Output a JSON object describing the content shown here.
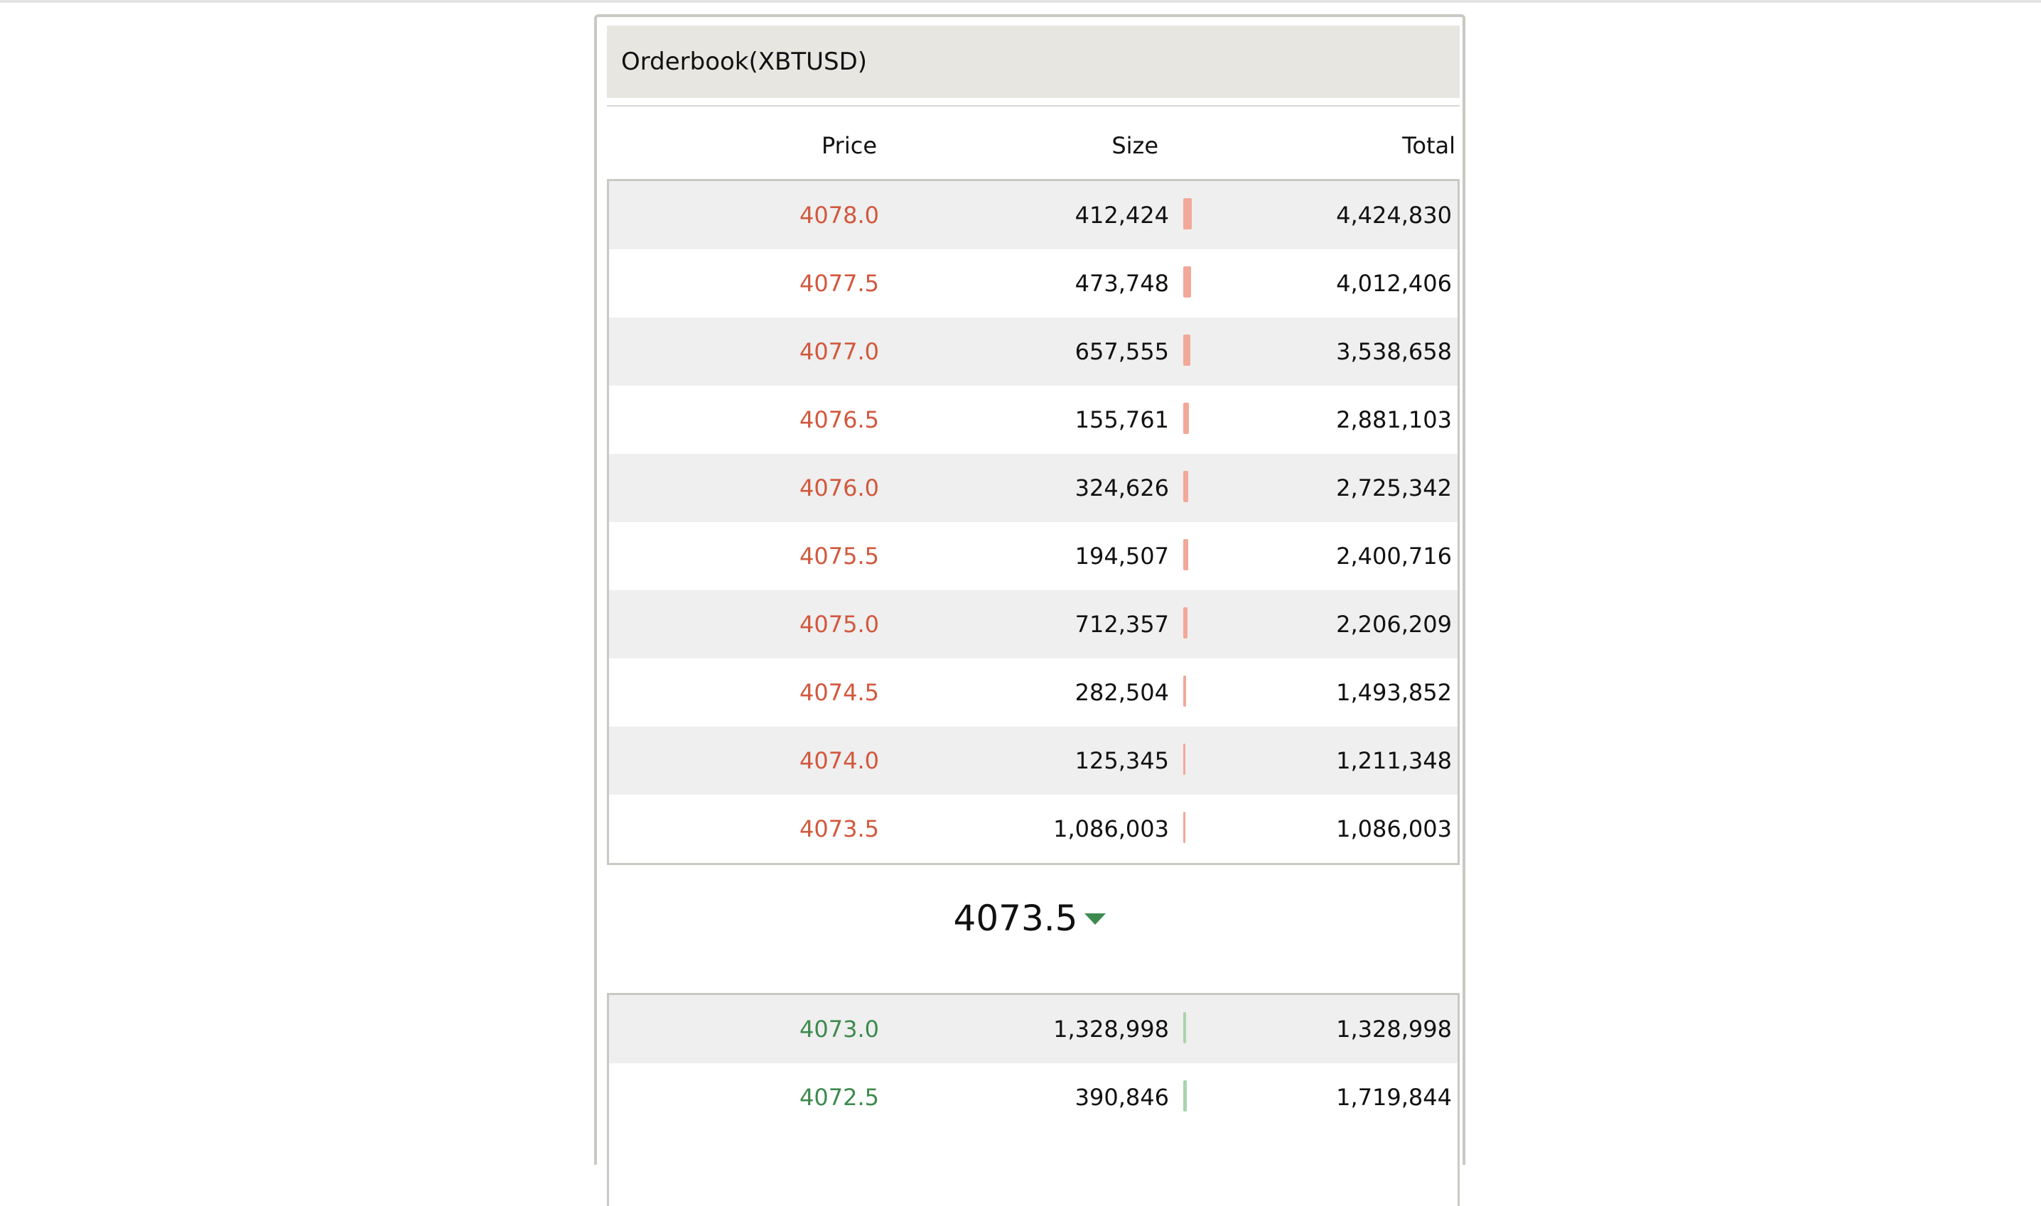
{
  "orderbook": {
    "title": "Orderbook(XBTUSD)",
    "columns": {
      "price": "Price",
      "size": "Size",
      "total": "Total"
    },
    "last_price": "4073.5",
    "last_price_direction": "down",
    "colors": {
      "ask": "#d2583d",
      "bid": "#3d8a4e",
      "ask_bar": "#f2a898",
      "bid_bar": "#a8d3b0"
    },
    "asks": [
      {
        "price": "4078.0",
        "size": "412,424",
        "total": "4,424,830"
      },
      {
        "price": "4077.5",
        "size": "473,748",
        "total": "4,012,406"
      },
      {
        "price": "4077.0",
        "size": "657,555",
        "total": "3,538,658"
      },
      {
        "price": "4076.5",
        "size": "155,761",
        "total": "2,881,103"
      },
      {
        "price": "4076.0",
        "size": "324,626",
        "total": "2,725,342"
      },
      {
        "price": "4075.5",
        "size": "194,507",
        "total": "2,400,716"
      },
      {
        "price": "4075.0",
        "size": "712,357",
        "total": "2,206,209"
      },
      {
        "price": "4074.5",
        "size": "282,504",
        "total": "1,493,852"
      },
      {
        "price": "4074.0",
        "size": "125,345",
        "total": "1,211,348"
      },
      {
        "price": "4073.5",
        "size": "1,086,003",
        "total": "1,086,003"
      }
    ],
    "bids": [
      {
        "price": "4073.0",
        "size": "1,328,998",
        "total": "1,328,998"
      },
      {
        "price": "4072.5",
        "size": "390,846",
        "total": "1,719,844"
      }
    ]
  }
}
